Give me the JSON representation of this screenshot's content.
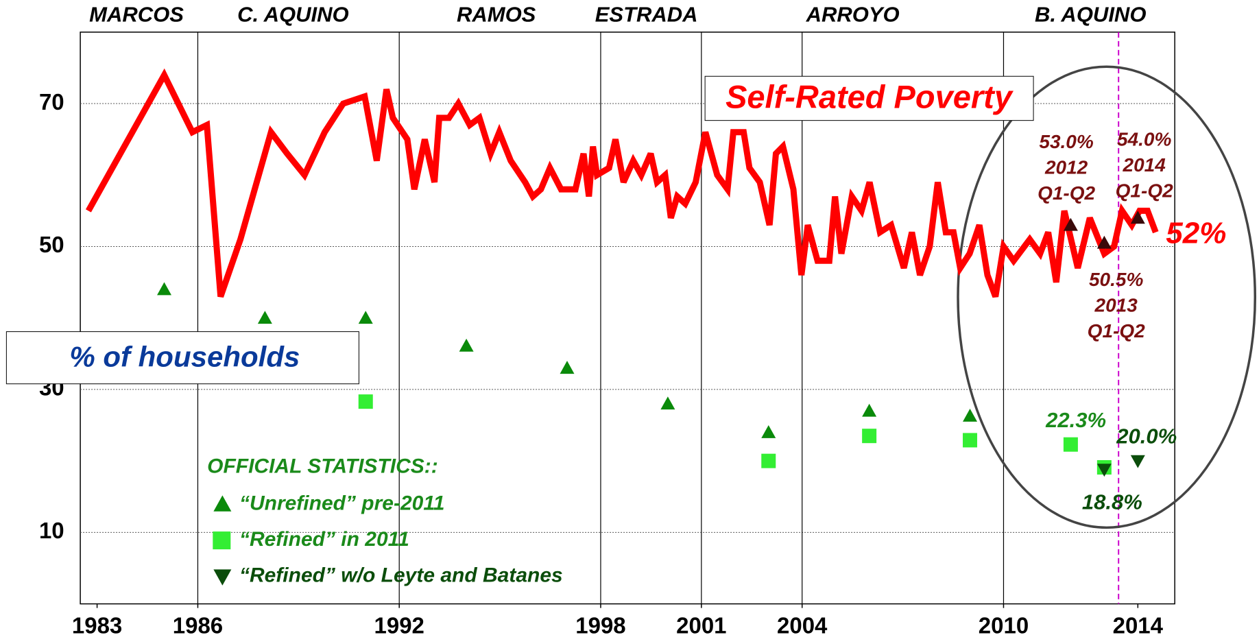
{
  "chart_data": {
    "type": "line",
    "y_label": "% of households",
    "xlim": [
      1982.5,
      2015.1
    ],
    "ylim": [
      0,
      80
    ],
    "xticks": [
      1983,
      1986,
      1992,
      1998,
      2001,
      2004,
      2010,
      2014
    ],
    "yticks": [
      10,
      30,
      50,
      70
    ],
    "grid": true,
    "presidents": [
      "MARCOS",
      "C. AQUINO",
      "RAMOS",
      "ESTRADA",
      "ARROYO",
      "B. AQUINO"
    ],
    "boundaries": [
      1986,
      1992,
      1998,
      2001,
      2004,
      2010
    ],
    "legend_title": "OFFICIAL STATISTICS::",
    "series": [
      {
        "name": "Self-Rated Poverty",
        "type": "line",
        "color": "#ff0000",
        "last_label": "52%",
        "x": [
          1982.74,
          1985.0,
          1985.84,
          1986.27,
          1986.68,
          1987.27,
          1988.18,
          1988.66,
          1989.18,
          1989.78,
          1990.33,
          1990.97,
          1991.33,
          1991.62,
          1991.81,
          1992.24,
          1992.45,
          1992.76,
          1993.05,
          1993.19,
          1993.48,
          1993.76,
          1994.1,
          1994.39,
          1994.72,
          1994.98,
          1995.32,
          1995.75,
          1995.98,
          1996.22,
          1996.49,
          1996.82,
          1997.25,
          1997.49,
          1997.65,
          1997.77,
          1997.89,
          1998.25,
          1998.44,
          1998.68,
          1998.97,
          1999.21,
          1999.49,
          1999.68,
          1999.92,
          2000.09,
          2000.28,
          2000.52,
          2000.83,
          2001.12,
          2001.47,
          2001.78,
          2001.95,
          2002.26,
          2002.43,
          2002.74,
          2003.03,
          2003.22,
          2003.43,
          2003.74,
          2003.98,
          2004.17,
          2004.46,
          2004.81,
          2004.98,
          2005.17,
          2005.48,
          2005.77,
          2006.01,
          2006.32,
          2006.65,
          2007.03,
          2007.27,
          2007.51,
          2007.8,
          2008.04,
          2008.28,
          2008.51,
          2008.71,
          2008.99,
          2009.28,
          2009.52,
          2009.76,
          2010.0,
          2010.3,
          2010.78,
          2011.09,
          2011.33,
          2011.57,
          2011.81,
          2012.21,
          2012.57,
          2013.0,
          2013.29,
          2013.53,
          2013.82,
          2014.05,
          2014.29,
          2014.53
        ],
        "values": [
          55,
          74,
          66,
          67,
          43,
          51,
          66,
          63,
          60,
          66,
          70,
          71,
          62,
          72,
          68,
          65,
          58,
          65,
          59,
          68,
          68,
          70,
          67,
          68,
          63,
          66,
          62,
          59,
          57,
          58,
          61,
          58,
          58,
          63,
          57,
          64,
          60,
          61,
          65,
          59,
          62,
          60,
          63,
          59,
          60,
          54,
          57,
          56,
          59,
          66,
          60,
          58,
          66,
          66,
          61,
          59,
          53,
          63,
          64,
          58,
          46,
          53,
          48,
          48,
          57,
          49,
          57,
          55,
          59,
          52,
          53,
          47,
          52,
          46,
          50,
          59,
          52,
          52,
          47,
          49,
          53,
          46,
          43,
          50,
          48,
          51,
          49,
          52,
          45,
          55,
          47,
          54,
          49,
          50,
          55,
          53,
          55,
          55,
          52
        ]
      },
      {
        "name": "“Unrefined” pre-2011",
        "type": "scatter",
        "marker": "triangle-up",
        "color": "#0a8a0a",
        "text_color": "#1a8a1a",
        "x": [
          1985,
          1988,
          1991,
          1994,
          1997,
          2000,
          2003,
          2006,
          2009
        ],
        "values": [
          44.0,
          40.0,
          40.0,
          36.1,
          33.0,
          28.0,
          24.0,
          27.0,
          26.3
        ]
      },
      {
        "name": "“Refined” in 2011",
        "type": "scatter",
        "marker": "square",
        "color": "#33ee33",
        "text_color": "#1a8a1a",
        "x": [
          1991,
          2003,
          2006,
          2009,
          2012,
          2013
        ],
        "values": [
          28.3,
          20.0,
          23.5,
          22.9,
          22.3,
          19.1
        ],
        "value_labels": [
          null,
          null,
          null,
          null,
          "22.3%",
          null
        ]
      },
      {
        "name": "“Refined” w/o Leyte and Batanes",
        "type": "scatter",
        "marker": "triangle-down",
        "color": "#0b4d0b",
        "text_color": "#0b4d0b",
        "x": [
          2013,
          2014
        ],
        "values": [
          18.8,
          20.0
        ],
        "value_labels": [
          "18.8%",
          "20.0%"
        ]
      },
      {
        "type": "scatter",
        "marker": "triangle-up",
        "color": "#3a0a0a",
        "text_color": "#7a1010",
        "x": [
          2012,
          2013,
          2014
        ],
        "values": [
          53.0,
          50.5,
          54.0
        ],
        "value_labels": [
          "53.0%",
          "50.5%",
          "54.0%"
        ],
        "year_labels": [
          "2012",
          "2013",
          "2014"
        ],
        "period_labels": [
          "Q1-Q2",
          "Q1-Q2",
          "Q1-Q2"
        ]
      }
    ]
  }
}
